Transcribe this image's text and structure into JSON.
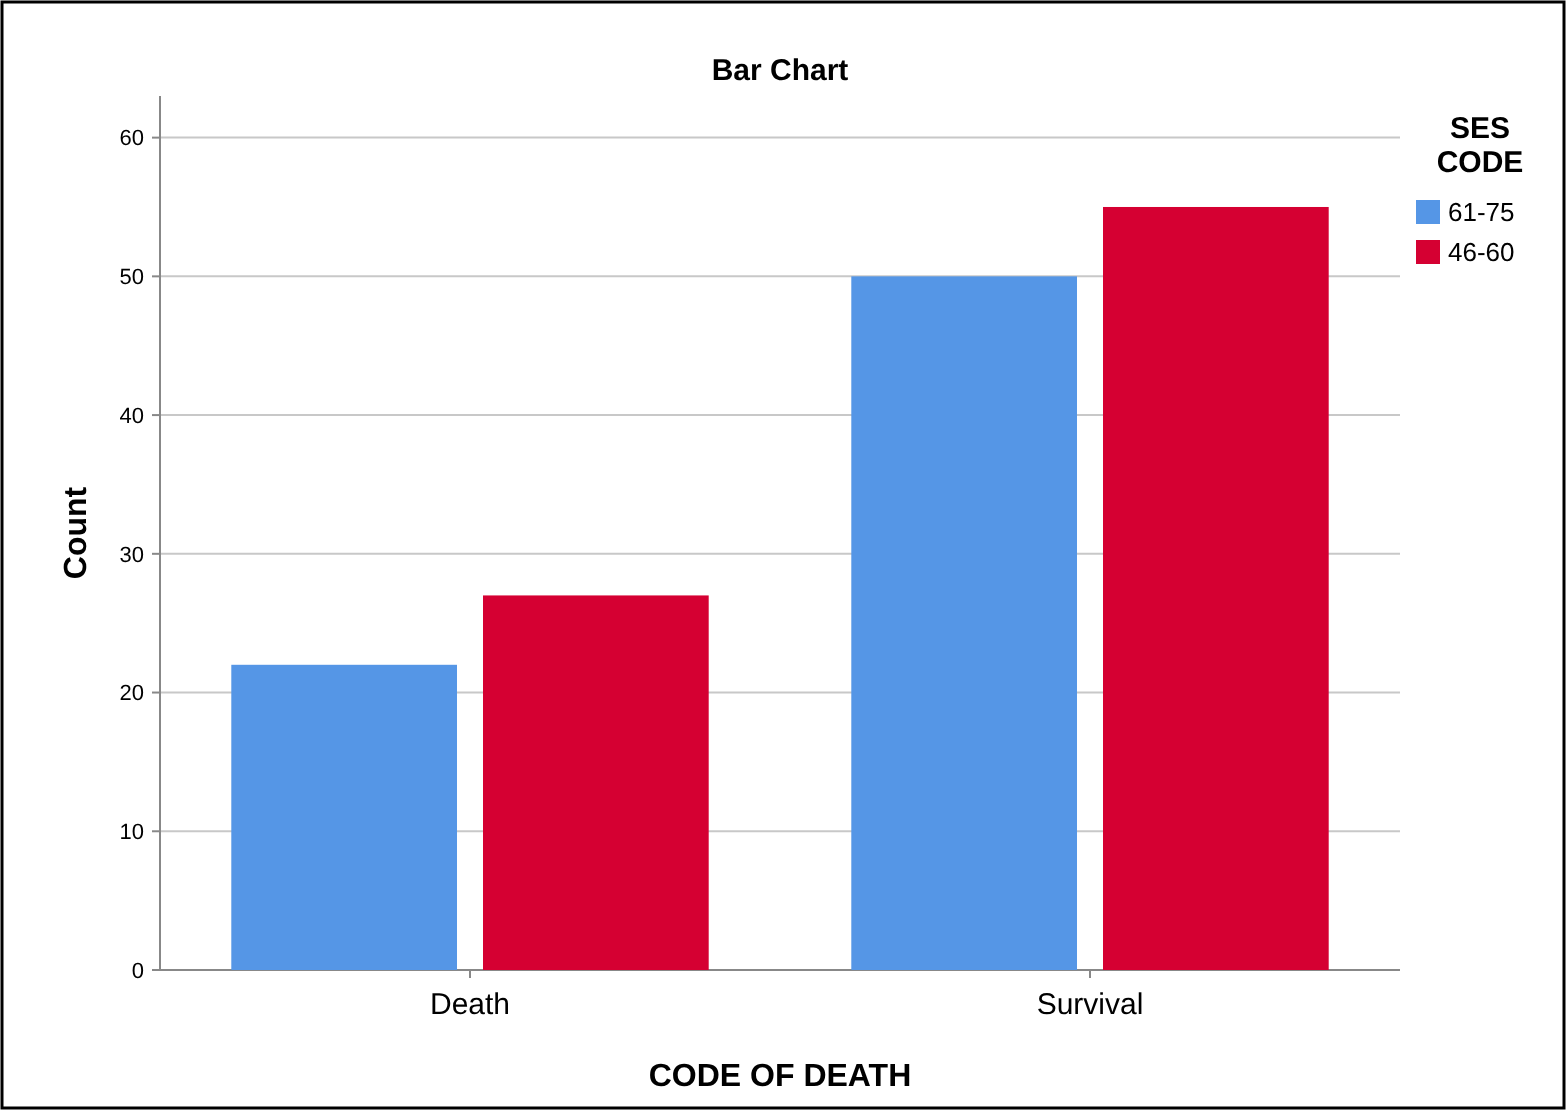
{
  "chart_data": {
    "type": "bar",
    "title": "Bar Chart",
    "xlabel": "CODE OF DEATH",
    "ylabel": "Count",
    "legend_title": "SES CODE",
    "categories": [
      "Death",
      "Survival"
    ],
    "series": [
      {
        "name": "61-75",
        "color": "#5596e6",
        "values": [
          22,
          50
        ]
      },
      {
        "name": "46-60",
        "color": "#d50032",
        "values": [
          27,
          55
        ]
      }
    ],
    "ylim": [
      0,
      63
    ],
    "yticks": [
      0,
      10,
      20,
      30,
      40,
      50,
      60
    ],
    "grid": "y",
    "legend": "top right"
  }
}
